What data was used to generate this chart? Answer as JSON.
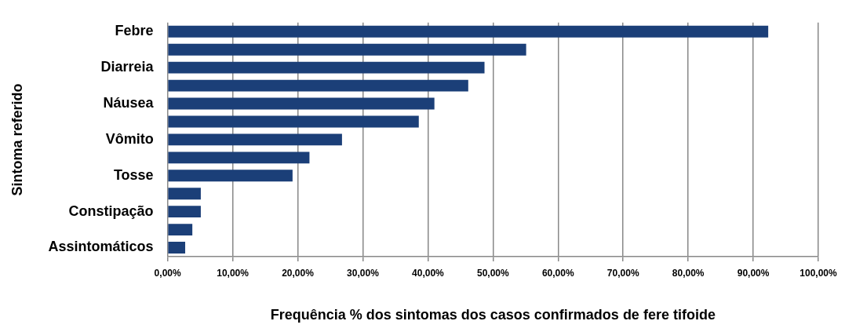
{
  "chart_data": {
    "type": "bar",
    "orientation": "horizontal",
    "ylabel": "Sintoma referido",
    "xlabel": "Frequência % dos sintomas dos casos confirmados de fere tifoide",
    "categories": [
      "Febre",
      null,
      "Diarreia",
      null,
      "Náusea",
      null,
      "Vômito",
      null,
      "Tosse",
      null,
      "Constipação",
      null,
      "Assintomáticos"
    ],
    "values": [
      92.3,
      55.1,
      48.7,
      46.2,
      41.0,
      38.6,
      26.8,
      21.8,
      19.2,
      5.1,
      5.1,
      3.8,
      2.7
    ],
    "color": "#1b3f78",
    "xlim": [
      0,
      100
    ],
    "xticks": [
      {
        "value": 0,
        "label": "0,00%"
      },
      {
        "value": 10,
        "label": "10,00%"
      },
      {
        "value": 20,
        "label": "20,00%"
      },
      {
        "value": 30,
        "label": "30,00%"
      },
      {
        "value": 40,
        "label": "40,00%"
      },
      {
        "value": 50,
        "label": "50,00%"
      },
      {
        "value": 60,
        "label": "60,00%"
      },
      {
        "value": 70,
        "label": "70,00%"
      },
      {
        "value": 80,
        "label": "80,00%"
      },
      {
        "value": 90,
        "label": "90,00%"
      },
      {
        "value": 100,
        "label": "100,00%"
      }
    ],
    "grid": "x"
  }
}
